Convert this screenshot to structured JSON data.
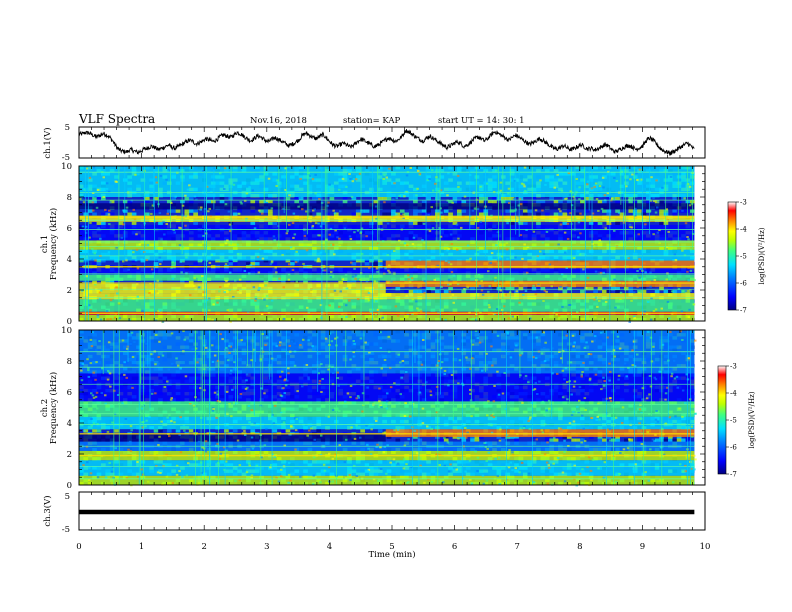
{
  "header": {
    "title": "VLF Spectra",
    "date": "Nov.16, 2018",
    "station": "station= KAP",
    "start": "start  UT =   14: 30: 1"
  },
  "chart_data": [
    {
      "type": "line",
      "panel": "ch1-waveform",
      "ylabel": "ch.1(V)",
      "ylim": [
        -5,
        5
      ],
      "yticks": [
        "5",
        "-5"
      ],
      "xlim": [
        0,
        10
      ],
      "data_end_min": 9.83,
      "trace_samples": [
        2.6,
        2.8,
        3.2,
        3.0,
        2.4,
        1.8,
        2.2,
        2.9,
        2.5,
        1.6,
        0.2,
        -1.6,
        -2.6,
        -2.9,
        -3.0,
        -2.3,
        -2.7,
        -3.2,
        -2.8,
        -2.1,
        -1.8,
        -1.2,
        -1.6,
        -2.3,
        -1.9,
        -1.4,
        -0.8,
        -1.5,
        -1.9,
        -1.2,
        -0.6,
        0.1,
        0.7,
        0.4,
        -0.4,
        -0.1,
        0.6,
        1.2,
        0.8,
        0.3,
        0.9,
        1.8,
        2.5,
        2.1,
        1.6,
        2.4,
        3.3,
        2.8,
        2.0,
        1.2,
        0.6,
        1.3,
        2.2,
        1.7,
        0.8,
        0.2,
        0.9,
        1.6,
        1.0,
        0.4,
        -0.3,
        -1.0,
        -0.6,
        0.1,
        0.9,
        2.3,
        3.0,
        2.4,
        1.7,
        1.2,
        1.9,
        2.6,
        1.4,
        0.2,
        -0.8,
        -1.3,
        -0.7,
        -0.2,
        -0.9,
        -1.5,
        -0.8,
        0.3,
        1.1,
        0.6,
        -0.1,
        -0.7,
        -1.4,
        -0.8,
        -0.1,
        0.7,
        1.5,
        1.0,
        0.4,
        1.0,
        2.0,
        3.9,
        3.4,
        2.6,
        1.8,
        1.1,
        0.5,
        1.3,
        2.1,
        1.4,
        0.6,
        -0.1,
        -0.9,
        -1.6,
        -1.1,
        -0.4,
        0.3,
        -0.3,
        -1.2,
        -0.8,
        0.2,
        1.1,
        1.8,
        1.2,
        0.5,
        1.4,
        2.6,
        3.5,
        2.9,
        2.2,
        1.5,
        0.8,
        1.6,
        2.4,
        1.7,
        0.9,
        0.2,
        -0.6,
        -0.1,
        0.6,
        1.3,
        0.7,
        -0.2,
        -1.1,
        -1.8,
        -2.2,
        -1.6,
        -1.0,
        -1.7,
        -2.3,
        -2.0,
        -1.3,
        -0.7,
        -1.4,
        -2.1,
        -1.8,
        -2.4,
        -2.0,
        -1.4,
        -0.6,
        -1.2,
        -2.4,
        -3.0,
        -2.5,
        -1.8,
        -1.3,
        -0.9,
        -1.5,
        -2.2,
        -1.7,
        -1.1,
        0.6,
        1.4,
        0.7,
        -0.5,
        -1.8,
        -2.6,
        -3.1,
        -3.4,
        -2.9,
        -2.2,
        -1.5,
        -0.8,
        -0.2,
        -1.1,
        -2.3
      ]
    },
    {
      "type": "heatmap",
      "panel": "ch1-spectrogram",
      "ylabel": "ch.1\nFrequency (kHz)",
      "xlim": [
        0,
        10
      ],
      "ylim": [
        0,
        10
      ],
      "yticks": [
        "0",
        "2",
        "4",
        "6",
        "8",
        "10"
      ],
      "bands": [
        {
          "f0": 0.0,
          "f1": 0.4,
          "t0": 0,
          "t1": 9.83,
          "level": -4.8
        },
        {
          "f0": 0.4,
          "f1": 0.6,
          "t0": 0,
          "t1": 9.83,
          "level": -3.8
        },
        {
          "f0": 0.6,
          "f1": 1.4,
          "t0": 0,
          "t1": 9.83,
          "level": -5.3
        },
        {
          "f0": 1.4,
          "f1": 1.8,
          "t0": 0,
          "t1": 9.83,
          "level": -4.6
        },
        {
          "f0": 1.8,
          "f1": 2.4,
          "t0": 0,
          "t1": 4.9,
          "level": -4.4
        },
        {
          "f0": 2.2,
          "f1": 2.6,
          "t0": 4.9,
          "t1": 9.83,
          "level": -4.2
        },
        {
          "f0": 2.6,
          "f1": 3.0,
          "t0": 0,
          "t1": 9.83,
          "level": -5.1
        },
        {
          "f0": 3.0,
          "f1": 3.4,
          "t0": 0,
          "t1": 9.83,
          "level": -6.6
        },
        {
          "f0": 3.4,
          "f1": 3.9,
          "t0": 4.9,
          "t1": 9.83,
          "level": -4.1
        },
        {
          "f0": 3.9,
          "f1": 4.6,
          "t0": 0,
          "t1": 9.83,
          "level": -5.6
        },
        {
          "f0": 4.6,
          "f1": 5.2,
          "t0": 0,
          "t1": 9.83,
          "level": -4.9
        },
        {
          "f0": 5.2,
          "f1": 6.2,
          "t0": 0,
          "t1": 9.83,
          "level": -6.3
        },
        {
          "f0": 6.4,
          "f1": 6.8,
          "t0": 0,
          "t1": 9.83,
          "level": -4.5
        },
        {
          "f0": 7.2,
          "f1": 7.6,
          "t0": 0,
          "t1": 9.83,
          "level": -6.8
        },
        {
          "f0": 8.0,
          "f1": 10.0,
          "t0": 0,
          "t1": 9.83,
          "level": -5.8
        }
      ],
      "lines_khz": [
        0.5,
        1.5,
        2.05,
        2.45,
        3.05,
        3.5,
        4.2,
        4.8,
        5.1,
        5.9,
        6.5,
        6.7,
        7.8,
        8.3,
        9.6
      ],
      "bright_lines_khz": [
        0.5,
        2.45,
        3.5,
        6.7
      ]
    },
    {
      "type": "heatmap",
      "panel": "ch2-spectrogram",
      "ylabel": "ch.2\nFrequency (kHz)",
      "xlim": [
        0,
        10
      ],
      "ylim": [
        0,
        10
      ],
      "yticks": [
        "0",
        "2",
        "4",
        "6",
        "8",
        "10"
      ],
      "bands": [
        {
          "f0": 0.0,
          "f1": 0.6,
          "t0": 0,
          "t1": 9.83,
          "level": -5.0
        },
        {
          "f0": 0.6,
          "f1": 1.6,
          "t0": 0,
          "t1": 9.83,
          "level": -5.5
        },
        {
          "f0": 1.6,
          "f1": 2.2,
          "t0": 0,
          "t1": 9.83,
          "level": -4.7
        },
        {
          "f0": 2.2,
          "f1": 2.8,
          "t0": 0,
          "t1": 9.83,
          "level": -5.9
        },
        {
          "f0": 2.8,
          "f1": 3.3,
          "t0": 0,
          "t1": 4.9,
          "level": -6.7
        },
        {
          "f0": 3.1,
          "f1": 3.6,
          "t0": 4.9,
          "t1": 9.83,
          "level": -4.2
        },
        {
          "f0": 3.6,
          "f1": 4.4,
          "t0": 0,
          "t1": 9.83,
          "level": -5.7
        },
        {
          "f0": 4.4,
          "f1": 5.4,
          "t0": 0,
          "t1": 9.83,
          "level": -5.2
        },
        {
          "f0": 5.4,
          "f1": 6.4,
          "t0": 0,
          "t1": 9.83,
          "level": -6.2
        },
        {
          "f0": 6.4,
          "f1": 7.2,
          "t0": 0,
          "t1": 9.83,
          "level": -6.6
        },
        {
          "f0": 7.2,
          "f1": 10.0,
          "t0": 0,
          "t1": 9.83,
          "level": -6.0
        }
      ],
      "lines_khz": [
        0.4,
        1.2,
        1.9,
        2.5,
        3.3,
        3.9,
        4.6,
        5.2,
        6.5,
        7.6,
        8.6
      ],
      "bright_lines_khz": [
        1.9,
        3.3
      ]
    },
    {
      "type": "line",
      "panel": "ch3-waveform",
      "ylabel": "ch.3(V)",
      "ylim": [
        -5,
        5
      ],
      "yticks": [
        "5",
        "-5"
      ],
      "xlim": [
        0,
        10
      ],
      "xticks": [
        "0",
        "1",
        "2",
        "3",
        "4",
        "5",
        "6",
        "7",
        "8",
        "9",
        "10"
      ],
      "xlabel": "Time  (min)",
      "constant_value": 0,
      "data_end_min": 9.83
    }
  ],
  "colorbar": {
    "label": "log(PSD)(V²/Hz)",
    "range": [
      -7,
      -3
    ],
    "ticks": [
      "-3",
      "-4",
      "-5",
      "-6",
      "-7"
    ],
    "colormap": [
      "#000080",
      "#0000ff",
      "#0080ff",
      "#00e0ff",
      "#40ff80",
      "#c0ff00",
      "#ffff00",
      "#ff8000",
      "#ff0000",
      "#ffffff"
    ]
  }
}
